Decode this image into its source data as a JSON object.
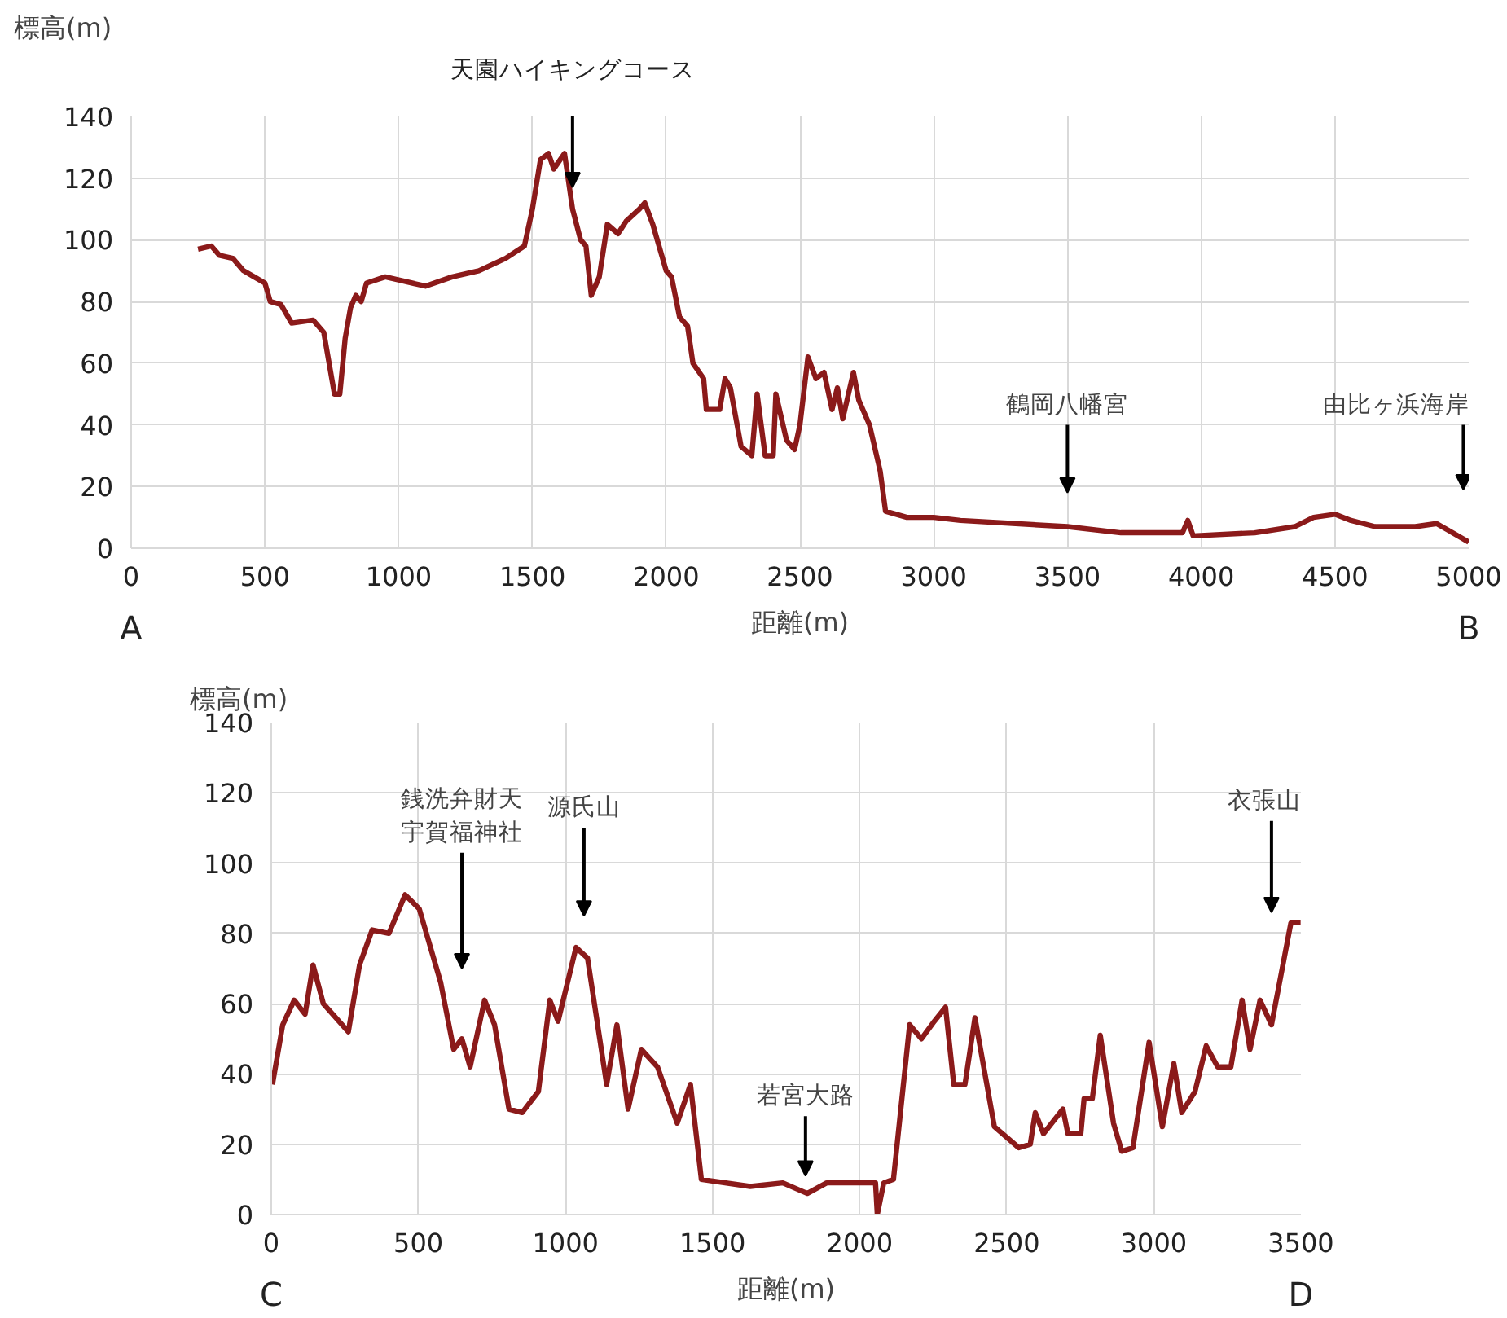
{
  "chart_data": [
    {
      "type": "line",
      "xlabel": "距離(m)",
      "ylabel": "標高(m)",
      "xlim": [
        0,
        5000
      ],
      "ylim": [
        0,
        140
      ],
      "xticks": [
        0,
        500,
        1000,
        1500,
        2000,
        2500,
        3000,
        3500,
        4000,
        4500,
        5000
      ],
      "yticks": [
        0,
        20,
        40,
        60,
        80,
        100,
        120,
        140
      ],
      "grid": true,
      "marker": "none",
      "line_style": "solid",
      "series": [
        {
          "color": "#8b1a1a",
          "x": [
            250,
            300,
            330,
            380,
            420,
            460,
            500,
            520,
            560,
            600,
            680,
            720,
            740,
            760,
            780,
            800,
            820,
            840,
            860,
            880,
            950,
            1000,
            1100,
            1200,
            1300,
            1400,
            1470,
            1500,
            1530,
            1560,
            1580,
            1620,
            1650,
            1680,
            1700,
            1720,
            1750,
            1780,
            1820,
            1850,
            1900,
            1920,
            1950,
            2000,
            2020,
            2050,
            2080,
            2100,
            2140,
            2150,
            2200,
            2220,
            2240,
            2280,
            2320,
            2340,
            2370,
            2400,
            2410,
            2450,
            2480,
            2500,
            2530,
            2560,
            2590,
            2620,
            2640,
            2660,
            2700,
            2720,
            2760,
            2800,
            2820,
            2900,
            3000,
            3100,
            3500,
            3700,
            3930,
            3950,
            3970,
            4200,
            4350,
            4420,
            4500,
            4560,
            4650,
            4800,
            4880,
            4920,
            5000
          ],
          "values": [
            97,
            98,
            95,
            94,
            90,
            88,
            86,
            80,
            79,
            73,
            74,
            70,
            60,
            50,
            50,
            68,
            78,
            82,
            80,
            86,
            88,
            87,
            85,
            88,
            90,
            94,
            98,
            110,
            126,
            128,
            123,
            128,
            110,
            100,
            98,
            82,
            88,
            105,
            102,
            106,
            110,
            112,
            105,
            90,
            88,
            75,
            72,
            60,
            55,
            45,
            45,
            55,
            52,
            33,
            30,
            50,
            30,
            30,
            50,
            35,
            32,
            40,
            62,
            55,
            57,
            45,
            52,
            42,
            57,
            48,
            40,
            25,
            12,
            10,
            10,
            9,
            7,
            5,
            5,
            9,
            4,
            5,
            7,
            10,
            11,
            9,
            7,
            7,
            8,
            6,
            2
          ]
        }
      ],
      "annotations": [
        "A",
        "B",
        "天園ハイキングコース",
        "鶴岡八幡宮",
        "由比ヶ浜海岸"
      ]
    },
    {
      "type": "line",
      "xlabel": "距離(m)",
      "ylabel": "標高(m)",
      "xlim": [
        0,
        3500
      ],
      "ylim": [
        0,
        140
      ],
      "xticks": [
        0,
        500,
        1000,
        1500,
        2000,
        2500,
        3000,
        3500
      ],
      "yticks": [
        0,
        20,
        40,
        60,
        80,
        100,
        120,
        140
      ],
      "grid": true,
      "marker": "none",
      "line_style": "solid",
      "series": [
        {
          "color": "#8b1a1a",
          "x": [
            4,
            39,
            78,
            115,
            142,
            177,
            262,
            300,
            343,
            400,
            455,
            503,
            576,
            620,
            648,
            676,
            725,
            759,
            808,
            853,
            908,
            947,
            975,
            1036,
            1075,
            1140,
            1175,
            1213,
            1258,
            1313,
            1380,
            1425,
            1462,
            1628,
            1739,
            1822,
            1888,
            2054,
            2060,
            2082,
            2115,
            2170,
            2210,
            2254,
            2292,
            2320,
            2358,
            2392,
            2458,
            2541,
            2580,
            2597,
            2625,
            2691,
            2708,
            2752,
            2763,
            2791,
            2818,
            2863,
            2891,
            2929,
            2984,
            3029,
            3068,
            3095,
            3140,
            3178,
            3217,
            3262,
            3300,
            3327,
            3361,
            3400,
            3466,
            3499
          ],
          "values": [
            37,
            54,
            61,
            57,
            71,
            60,
            52,
            71,
            81,
            80,
            91,
            87,
            66,
            47,
            50,
            42,
            61,
            54,
            30,
            29,
            35,
            61,
            55,
            76,
            73,
            37,
            54,
            30,
            47,
            42,
            26,
            37,
            10,
            8,
            9,
            6,
            9,
            9,
            0,
            9,
            10,
            54,
            50,
            55,
            59,
            37,
            37,
            56,
            25,
            19,
            20,
            29,
            23,
            30,
            23,
            23,
            33,
            33,
            51,
            26,
            18,
            19,
            49,
            25,
            43,
            29,
            35,
            48,
            42,
            42,
            61,
            47,
            61,
            54,
            83,
            83
          ]
        }
      ],
      "annotations": [
        "C",
        "D",
        "銭洗弁財天宇賀福神社",
        "源氏山",
        "若宮大路",
        "衣張山"
      ]
    }
  ]
}
